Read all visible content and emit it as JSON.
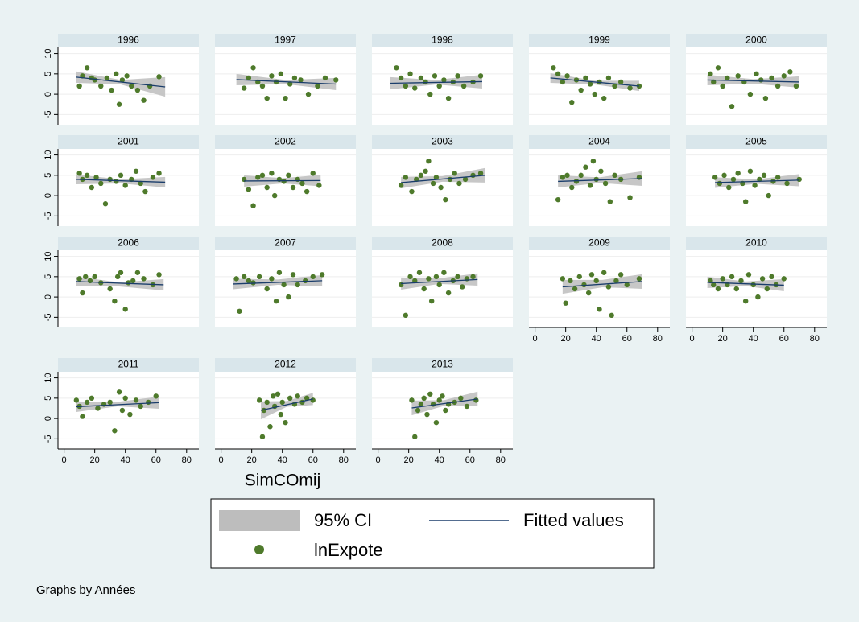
{
  "axes": {
    "xlim": [
      -4,
      88
    ],
    "xticks": [
      0,
      20,
      40,
      60,
      80
    ],
    "ylim": [
      -7.5,
      11.5
    ],
    "yticks": [
      -5,
      0,
      5,
      10
    ]
  },
  "x_label": "SimCOmij",
  "note": "Graphs by Années",
  "legend": [
    {
      "name": "95% CI",
      "color": "#bdbdbd"
    },
    {
      "name": "Fitted values",
      "color": "#1a3d6b"
    },
    {
      "name": "lnExpote",
      "color": "#4e7a2b"
    }
  ],
  "chart_data": [
    {
      "type": "scatter",
      "title": "1996",
      "x": [
        10,
        12,
        15,
        18,
        20,
        24,
        28,
        31,
        34,
        36,
        38,
        41,
        44,
        48,
        52,
        56,
        62
      ],
      "values": [
        2,
        4.5,
        6.5,
        4,
        3.5,
        2,
        4,
        1,
        5,
        -2.5,
        3.5,
        4.5,
        2,
        1,
        -1.5,
        2,
        4.3
      ],
      "fit": {
        "x": [
          8,
          66
        ],
        "y": [
          4.2,
          1.8
        ]
      },
      "ci": {
        "x": [
          8,
          37,
          66
        ],
        "lower": [
          2.8,
          2.4,
          -0.6
        ],
        "upper": [
          5.6,
          3.5,
          4.2
        ]
      }
    },
    {
      "type": "scatter",
      "title": "1997",
      "x": [
        15,
        18,
        21,
        24,
        27,
        30,
        33,
        36,
        39,
        42,
        45,
        48,
        52,
        57,
        63,
        68,
        75
      ],
      "values": [
        1.5,
        4,
        6.5,
        3,
        2,
        -1,
        4.5,
        3,
        5,
        -1,
        2.5,
        4,
        3.5,
        0,
        2,
        4,
        3.5
      ],
      "fit": {
        "x": [
          10,
          75
        ],
        "y": [
          3.6,
          2.5
        ]
      },
      "ci": {
        "x": [
          10,
          42,
          75
        ],
        "lower": [
          2.2,
          2.5,
          1.0
        ],
        "upper": [
          5.0,
          3.5,
          4.0
        ]
      }
    },
    {
      "type": "scatter",
      "title": "1998",
      "x": [
        12,
        15,
        18,
        21,
        24,
        28,
        31,
        34,
        37,
        40,
        43,
        46,
        49,
        52,
        56,
        62,
        67
      ],
      "values": [
        6.5,
        4,
        2,
        5,
        1.5,
        4,
        3,
        0,
        4.5,
        2,
        3.5,
        -1,
        3,
        4.5,
        2,
        3,
        4.5
      ],
      "fit": {
        "x": [
          8,
          68
        ],
        "y": [
          2.7,
          3.1
        ]
      },
      "ci": {
        "x": [
          8,
          38,
          68
        ],
        "lower": [
          1.2,
          2.4,
          1.4
        ],
        "upper": [
          4.2,
          3.5,
          4.8
        ]
      }
    },
    {
      "type": "scatter",
      "title": "1999",
      "x": [
        12,
        15,
        18,
        21,
        24,
        27,
        30,
        33,
        36,
        39,
        42,
        45,
        48,
        52,
        56,
        62,
        68
      ],
      "values": [
        6.5,
        5,
        3,
        4.5,
        -2,
        3.5,
        1,
        4,
        2.5,
        0,
        3,
        -1,
        4,
        2,
        3,
        1.5,
        2
      ],
      "fit": {
        "x": [
          10,
          68
        ],
        "y": [
          4.0,
          2.0
        ]
      },
      "ci": {
        "x": [
          10,
          39,
          68
        ],
        "lower": [
          2.8,
          2.4,
          0.8
        ],
        "upper": [
          5.2,
          3.3,
          3.3
        ]
      }
    },
    {
      "type": "scatter",
      "title": "2000",
      "x": [
        12,
        14,
        17,
        20,
        23,
        26,
        30,
        34,
        38,
        42,
        45,
        48,
        52,
        56,
        60,
        64,
        68
      ],
      "values": [
        5,
        3,
        6.5,
        2,
        4,
        -3,
        4.5,
        3,
        0,
        5,
        3.5,
        -1,
        4,
        2,
        4.5,
        5.5,
        2
      ],
      "fit": {
        "x": [
          10,
          70
        ],
        "y": [
          3.5,
          3.0
        ]
      },
      "ci": {
        "x": [
          10,
          40,
          70
        ],
        "lower": [
          2.2,
          2.6,
          1.6
        ],
        "upper": [
          4.8,
          3.7,
          4.4
        ]
      }
    },
    {
      "type": "scatter",
      "title": "2001",
      "x": [
        10,
        12,
        15,
        18,
        21,
        24,
        27,
        30,
        34,
        37,
        40,
        44,
        47,
        50,
        53,
        58,
        62
      ],
      "values": [
        5.5,
        4,
        5,
        2,
        4.5,
        3,
        -2,
        4,
        3.5,
        5,
        2.5,
        4,
        6,
        3,
        1,
        4.5,
        5.5
      ],
      "fit": {
        "x": [
          8,
          66
        ],
        "y": [
          4.0,
          3.3
        ]
      },
      "ci": {
        "x": [
          8,
          37,
          66
        ],
        "lower": [
          2.8,
          3.0,
          2.0
        ],
        "upper": [
          5.2,
          4.0,
          4.6
        ]
      }
    },
    {
      "type": "scatter",
      "title": "2002",
      "x": [
        15,
        18,
        21,
        24,
        27,
        30,
        33,
        35,
        38,
        41,
        44,
        47,
        50,
        53,
        56,
        60,
        64
      ],
      "values": [
        4,
        1.5,
        -2.5,
        4.5,
        5,
        2,
        5.5,
        0,
        4,
        3.5,
        5,
        2,
        4,
        3,
        1,
        5.5,
        2.5
      ],
      "fit": {
        "x": [
          15,
          65
        ],
        "y": [
          3.6,
          3.7
        ]
      },
      "ci": {
        "x": [
          15,
          40,
          65
        ],
        "lower": [
          2.2,
          3.0,
          2.3
        ],
        "upper": [
          5.0,
          4.3,
          5.1
        ]
      }
    },
    {
      "type": "scatter",
      "title": "2003",
      "x": [
        15,
        18,
        22,
        25,
        28,
        31,
        33,
        36,
        38,
        41,
        44,
        47,
        50,
        53,
        57,
        62,
        67
      ],
      "values": [
        2.5,
        4.5,
        1,
        4,
        5,
        6,
        8.5,
        3,
        4.5,
        2,
        -1,
        4,
        5.5,
        3,
        4,
        5,
        5.5
      ],
      "fit": {
        "x": [
          15,
          70
        ],
        "y": [
          3.2,
          5.0
        ]
      },
      "ci": {
        "x": [
          15,
          42,
          70
        ],
        "lower": [
          1.8,
          3.4,
          3.2
        ],
        "upper": [
          4.6,
          4.8,
          6.8
        ]
      }
    },
    {
      "type": "scatter",
      "title": "2004",
      "x": [
        15,
        18,
        21,
        24,
        27,
        30,
        33,
        36,
        38,
        40,
        43,
        46,
        49,
        52,
        56,
        62,
        68
      ],
      "values": [
        -1,
        4.5,
        5,
        2,
        3.5,
        5,
        7,
        2.5,
        8.5,
        4,
        6,
        3,
        -1.5,
        5,
        4,
        -0.5,
        4.5
      ],
      "fit": {
        "x": [
          15,
          70
        ],
        "y": [
          3.5,
          4.2
        ]
      },
      "ci": {
        "x": [
          15,
          42,
          70
        ],
        "lower": [
          2.0,
          3.1,
          2.4
        ],
        "upper": [
          5.0,
          4.5,
          6.0
        ]
      }
    },
    {
      "type": "scatter",
      "title": "2005",
      "x": [
        15,
        18,
        21,
        24,
        27,
        30,
        33,
        35,
        38,
        41,
        44,
        47,
        50,
        53,
        56,
        62,
        70
      ],
      "values": [
        4.5,
        3,
        5,
        2,
        4,
        5.5,
        3,
        -1.5,
        6,
        2.5,
        4,
        5,
        0,
        3.5,
        4.5,
        3,
        4
      ],
      "fit": {
        "x": [
          15,
          70
        ],
        "y": [
          3.2,
          3.8
        ]
      },
      "ci": {
        "x": [
          15,
          42,
          70
        ],
        "lower": [
          1.9,
          2.9,
          2.3
        ],
        "upper": [
          4.5,
          4.0,
          5.3
        ]
      }
    },
    {
      "type": "scatter",
      "title": "2006",
      "x": [
        10,
        12,
        14,
        17,
        20,
        24,
        30,
        33,
        35,
        37,
        40,
        42,
        45,
        48,
        52,
        58,
        62
      ],
      "values": [
        4.5,
        1,
        5,
        4,
        5,
        3.5,
        2,
        -1,
        5,
        6,
        -3,
        3.5,
        4,
        6,
        4.5,
        3,
        5.5
      ],
      "fit": {
        "x": [
          8,
          65
        ],
        "y": [
          3.8,
          3.0
        ]
      },
      "ci": {
        "x": [
          8,
          36,
          65
        ],
        "lower": [
          2.6,
          2.6,
          1.6
        ],
        "upper": [
          5.0,
          3.6,
          4.4
        ]
      }
    },
    {
      "type": "scatter",
      "title": "2007",
      "x": [
        10,
        12,
        15,
        18,
        21,
        25,
        30,
        33,
        36,
        38,
        41,
        44,
        47,
        50,
        55,
        60,
        66
      ],
      "values": [
        4.5,
        -3.5,
        5,
        4,
        3.5,
        5,
        2,
        4.5,
        -1,
        6,
        3,
        0,
        5.5,
        3,
        4,
        5,
        5.5
      ],
      "fit": {
        "x": [
          8,
          66
        ],
        "y": [
          3.2,
          4.0
        ]
      },
      "ci": {
        "x": [
          8,
          37,
          66
        ],
        "lower": [
          1.9,
          3.0,
          2.6
        ],
        "upper": [
          4.5,
          4.3,
          5.4
        ]
      }
    },
    {
      "type": "scatter",
      "title": "2008",
      "x": [
        15,
        18,
        21,
        24,
        27,
        30,
        33,
        35,
        38,
        40,
        43,
        46,
        49,
        52,
        55,
        58,
        62
      ],
      "values": [
        3,
        -4.5,
        5,
        4,
        6,
        2,
        4.5,
        -1,
        5,
        3,
        6,
        1,
        4,
        5,
        2.5,
        4.5,
        5
      ],
      "fit": {
        "x": [
          15,
          65
        ],
        "y": [
          3.3,
          4.3
        ]
      },
      "ci": {
        "x": [
          15,
          40,
          65
        ],
        "lower": [
          1.8,
          3.2,
          2.8
        ],
        "upper": [
          4.8,
          4.6,
          5.8
        ]
      }
    },
    {
      "type": "scatter",
      "title": "2009",
      "x": [
        18,
        20,
        23,
        26,
        29,
        32,
        35,
        37,
        40,
        42,
        45,
        48,
        50,
        53,
        56,
        60,
        68
      ],
      "values": [
        4.5,
        -1.5,
        4,
        2,
        5,
        3,
        1,
        5.5,
        4,
        -3,
        6,
        2.5,
        -4.5,
        4,
        5.5,
        3,
        4.5
      ],
      "fit": {
        "x": [
          18,
          70
        ],
        "y": [
          2.5,
          3.8
        ]
      },
      "ci": {
        "x": [
          18,
          44,
          70
        ],
        "lower": [
          0.8,
          2.4,
          2.0
        ],
        "upper": [
          4.2,
          4.2,
          5.6
        ]
      }
    },
    {
      "type": "scatter",
      "title": "2010",
      "x": [
        12,
        14,
        17,
        20,
        23,
        26,
        29,
        32,
        35,
        37,
        40,
        43,
        46,
        49,
        52,
        55,
        60
      ],
      "values": [
        4,
        3,
        2,
        4.5,
        3,
        5,
        2,
        4,
        -1,
        5.5,
        3,
        0,
        4.5,
        2,
        5,
        3,
        4.5
      ],
      "fit": {
        "x": [
          10,
          60
        ],
        "y": [
          3.6,
          2.9
        ]
      },
      "ci": {
        "x": [
          10,
          35,
          60
        ],
        "lower": [
          2.2,
          2.7,
          1.4
        ],
        "upper": [
          5.0,
          3.8,
          4.4
        ]
      }
    },
    {
      "type": "scatter",
      "title": "2011",
      "x": [
        8,
        10,
        12,
        15,
        18,
        22,
        26,
        30,
        33,
        36,
        38,
        40,
        43,
        47,
        50,
        55,
        60
      ],
      "values": [
        4.5,
        3,
        0.5,
        4,
        5,
        2.5,
        3.5,
        4,
        -3,
        6.5,
        2,
        5,
        1,
        4.5,
        3,
        4,
        5.5
      ],
      "fit": {
        "x": [
          8,
          62
        ],
        "y": [
          2.9,
          3.9
        ]
      },
      "ci": {
        "x": [
          8,
          35,
          62
        ],
        "lower": [
          1.6,
          3.0,
          2.4
        ],
        "upper": [
          4.2,
          4.1,
          5.4
        ]
      }
    },
    {
      "type": "scatter",
      "title": "2012",
      "x": [
        25,
        27,
        28,
        30,
        32,
        34,
        35,
        37,
        39,
        40,
        42,
        45,
        48,
        50,
        53,
        56,
        60
      ],
      "values": [
        4.5,
        -4.5,
        2,
        4,
        -2,
        5.5,
        3,
        6,
        1,
        4,
        -1,
        5,
        3.5,
        5.5,
        4,
        5,
        4.5
      ],
      "fit": {
        "x": [
          26,
          60
        ],
        "y": [
          2.0,
          4.8
        ]
      },
      "ci": {
        "x": [
          26,
          43,
          60
        ],
        "lower": [
          -0.2,
          2.9,
          3.3
        ],
        "upper": [
          4.2,
          4.3,
          6.3
        ]
      }
    },
    {
      "type": "scatter",
      "title": "2013",
      "x": [
        22,
        24,
        26,
        28,
        30,
        32,
        34,
        36,
        38,
        40,
        42,
        44,
        46,
        50,
        54,
        58,
        64
      ],
      "values": [
        4.5,
        -4.5,
        2,
        3.5,
        5,
        1,
        6,
        3.5,
        -1,
        4.5,
        5.5,
        2,
        3.5,
        4,
        5,
        3,
        4.5
      ],
      "fit": {
        "x": [
          22,
          65
        ],
        "y": [
          2.6,
          4.8
        ]
      },
      "ci": {
        "x": [
          22,
          43,
          65
        ],
        "lower": [
          0.8,
          3.1,
          3.0
        ],
        "upper": [
          4.4,
          4.5,
          6.6
        ]
      }
    }
  ]
}
